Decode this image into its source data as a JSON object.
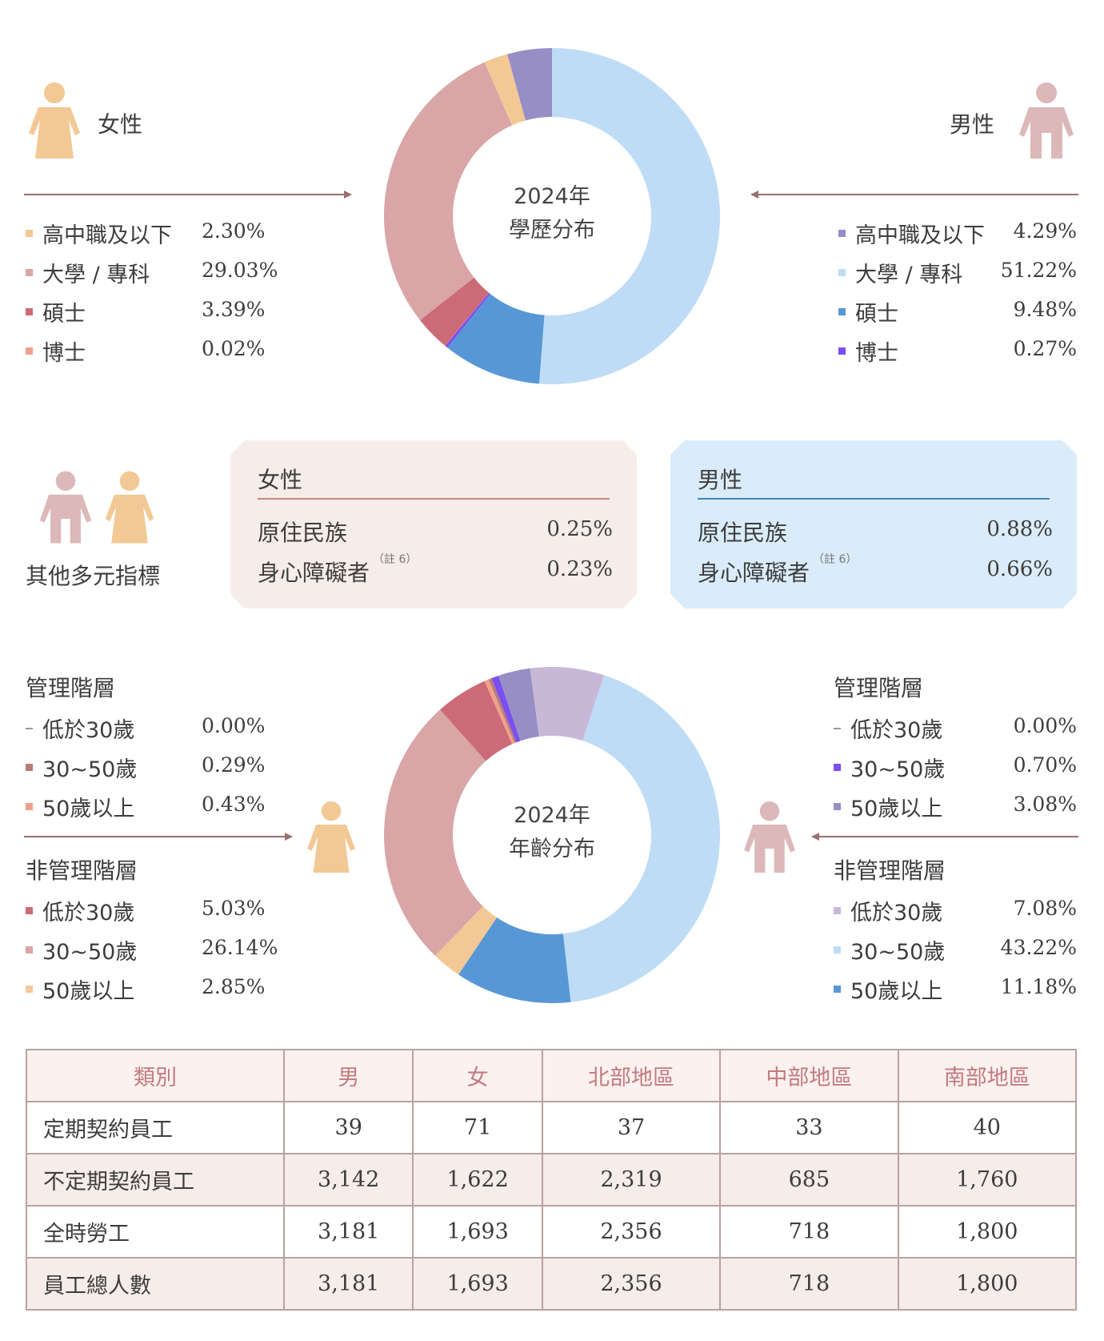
{
  "colors": {
    "f_hs": "#f2c895",
    "f_uni": "#d9a5a7",
    "f_master": "#cc6a78",
    "f_phd": "#f0a08c",
    "m_hs": "#988ec6",
    "m_uni": "#bedcf5",
    "m_master": "#5897d6",
    "m_phd": "#7b4ef0",
    "age_f_mgr_lt30": "#9a9a9a",
    "age_f_mgr_30_50": "#b97c74",
    "age_f_mgr_50": "#f0a08c",
    "age_f_non_lt30": "#cc6a78",
    "age_f_non_30_50": "#d9a5a7",
    "age_f_non_50": "#f2c895",
    "age_m_mgr_lt30": "#9a9a9a",
    "age_m_mgr_30_50": "#7b4ef0",
    "age_m_mgr_50": "#988ec6",
    "age_m_non_lt30": "#c8b8d8",
    "age_m_non_30_50": "#bedcf5",
    "age_m_non_50": "#5897d6",
    "female_icon": "#f2c895",
    "male_icon": "#dcb8b8"
  },
  "education": {
    "female_title": "女性",
    "male_title": "男性",
    "center_line1": "2024年",
    "center_line2": "學歷分布",
    "female_items": [
      {
        "label": "高中職及以下",
        "value": "2.30%"
      },
      {
        "label": "大學 / 專科",
        "value": "29.03%"
      },
      {
        "label": "碩士",
        "value": "3.39%"
      },
      {
        "label": "博士",
        "value": "0.02%"
      }
    ],
    "male_items": [
      {
        "label": "高中職及以下",
        "value": "4.29%"
      },
      {
        "label": "大學 / 專科",
        "value": "51.22%"
      },
      {
        "label": "碩士",
        "value": "9.48%"
      },
      {
        "label": "博士",
        "value": "0.27%"
      }
    ]
  },
  "diversity": {
    "title": "其他多元指標",
    "female_card": {
      "title": "女性",
      "rows": [
        {
          "label": "原住民族",
          "note": "",
          "value": "0.25%"
        },
        {
          "label": "身心障礙者",
          "note": "（註 6）",
          "value": "0.23%"
        }
      ]
    },
    "male_card": {
      "title": "男性",
      "rows": [
        {
          "label": "原住民族",
          "note": "",
          "value": "0.88%"
        },
        {
          "label": "身心障礙者",
          "note": "（註 6）",
          "value": "0.66%"
        }
      ]
    }
  },
  "age": {
    "center_line1": "2024年",
    "center_line2": "年齡分布",
    "female": {
      "mgr_title": "管理階層",
      "mgr_items": [
        {
          "label": "低於30歲",
          "value": "0.00%"
        },
        {
          "label": "30~50歲",
          "value": "0.29%"
        },
        {
          "label": "50歲以上",
          "value": "0.43%"
        }
      ],
      "non_title": "非管理階層",
      "non_items": [
        {
          "label": "低於30歲",
          "value": "5.03%"
        },
        {
          "label": "30~50歲",
          "value": "26.14%"
        },
        {
          "label": "50歲以上",
          "value": "2.85%"
        }
      ]
    },
    "male": {
      "mgr_title": "管理階層",
      "mgr_items": [
        {
          "label": "低於30歲",
          "value": "0.00%"
        },
        {
          "label": "30~50歲",
          "value": "0.70%"
        },
        {
          "label": "50歲以上",
          "value": "3.08%"
        }
      ],
      "non_title": "非管理階層",
      "non_items": [
        {
          "label": "低於30歲",
          "value": "7.08%"
        },
        {
          "label": "30~50歲",
          "value": "43.22%"
        },
        {
          "label": "50歲以上",
          "value": "11.18%"
        }
      ]
    }
  },
  "table": {
    "headers": [
      "類別",
      "男",
      "女",
      "北部地區",
      "中部地區",
      "南部地區"
    ],
    "rows": [
      [
        "定期契約員工",
        "39",
        "71",
        "37",
        "33",
        "40"
      ],
      [
        "不定期契約員工",
        "3,142",
        "1,622",
        "2,319",
        "685",
        "1,760"
      ],
      [
        "全時勞工",
        "3,181",
        "1,693",
        "2,356",
        "718",
        "1,800"
      ],
      [
        "員工總人數",
        "3,181",
        "1,693",
        "2,356",
        "718",
        "1,800"
      ]
    ]
  },
  "chart_data": [
    {
      "type": "pie",
      "title": "2024年 學歷分布",
      "start_angle": 0,
      "direction": "clockwise",
      "slices": [
        {
          "label": "男性 大學 / 專科",
          "value": 51.22,
          "color_key": "m_uni"
        },
        {
          "label": "男性 碩士",
          "value": 9.48,
          "color_key": "m_master"
        },
        {
          "label": "男性 博士",
          "value": 0.27,
          "color_key": "m_phd"
        },
        {
          "label": "女性 博士",
          "value": 0.02,
          "color_key": "f_phd"
        },
        {
          "label": "女性 碩士",
          "value": 3.39,
          "color_key": "f_master"
        },
        {
          "label": "女性 大學 / 專科",
          "value": 29.03,
          "color_key": "f_uni"
        },
        {
          "label": "女性 高中職及以下",
          "value": 2.3,
          "color_key": "f_hs"
        },
        {
          "label": "男性 高中職及以下",
          "value": 4.29,
          "color_key": "m_hs"
        }
      ]
    },
    {
      "type": "pie",
      "title": "2024年 年齡分布",
      "start_angle": 18,
      "direction": "clockwise",
      "slices": [
        {
          "label": "男性 非管理階層 30~50歲",
          "value": 43.22,
          "color_key": "age_m_non_30_50"
        },
        {
          "label": "男性 非管理階層 50歲以上",
          "value": 11.18,
          "color_key": "age_m_non_50"
        },
        {
          "label": "女性 非管理階層 50歲以上",
          "value": 2.85,
          "color_key": "age_f_non_50"
        },
        {
          "label": "女性 非管理階層 30~50歲",
          "value": 26.14,
          "color_key": "age_f_non_30_50"
        },
        {
          "label": "女性 非管理階層 低於30歲",
          "value": 5.03,
          "color_key": "age_f_non_lt30"
        },
        {
          "label": "女性 管理階層 50歲以上",
          "value": 0.43,
          "color_key": "age_f_mgr_50"
        },
        {
          "label": "女性 管理階層 30~50歲",
          "value": 0.29,
          "color_key": "age_f_mgr_30_50"
        },
        {
          "label": "男性 管理階層 30~50歲",
          "value": 0.7,
          "color_key": "age_m_mgr_30_50"
        },
        {
          "label": "男性 管理階層 50歲以上",
          "value": 3.08,
          "color_key": "age_m_mgr_50"
        },
        {
          "label": "男性 非管理階層 低於30歲",
          "value": 7.08,
          "color_key": "age_m_non_lt30"
        }
      ]
    }
  ]
}
